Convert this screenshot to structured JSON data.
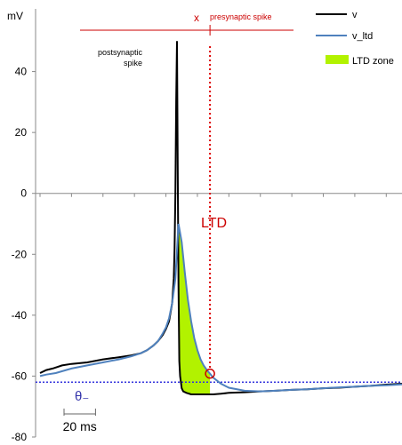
{
  "chart_data": {
    "type": "line",
    "ylabel": "mV",
    "ylim": [
      -80,
      60
    ],
    "yticks": [
      {
        "value": 40,
        "label": "40"
      },
      {
        "value": 20,
        "label": "20"
      },
      {
        "value": 0,
        "label": "0"
      },
      {
        "value": -20,
        "label": "-20"
      },
      {
        "value": -40,
        "label": "-40"
      },
      {
        "value": -60,
        "label": "-60"
      },
      {
        "value": -80,
        "label": "-80"
      }
    ],
    "grid": false,
    "legend": {
      "placement": "top-right",
      "entries": [
        {
          "label": "v",
          "color": "#000000",
          "kind": "line"
        },
        {
          "label": "v_ltd",
          "color": "#4f81bd",
          "kind": "line"
        },
        {
          "label": "LTD zone",
          "color": "#b2f200",
          "kind": "patch"
        }
      ]
    },
    "series": [
      {
        "name": "v",
        "color": "#000000",
        "x": [
          0,
          4,
          8,
          14,
          20,
          30,
          40,
          50,
          58,
          64,
          68,
          72,
          75,
          78,
          80,
          82,
          84,
          85,
          85.5,
          86,
          86.5,
          87,
          87.5,
          88,
          88.5,
          89,
          89.5,
          90,
          91,
          93,
          96,
          100,
          105,
          110,
          115,
          120,
          130,
          140,
          150,
          160,
          170,
          180,
          190,
          200,
          210,
          220,
          230
        ],
        "values": [
          -59,
          -58,
          -57.5,
          -56.5,
          -56,
          -55.5,
          -54.5,
          -53.8,
          -53.2,
          -52.5,
          -51.5,
          -50,
          -48.5,
          -46.5,
          -44.5,
          -42,
          -36,
          -28,
          -18,
          0,
          30,
          50,
          10,
          -30,
          -55,
          -60,
          -62,
          -64,
          -65,
          -65.5,
          -66,
          -66,
          -66,
          -66,
          -65.8,
          -65.5,
          -65.3,
          -65,
          -64.8,
          -64.5,
          -64.3,
          -64,
          -63.8,
          -63.5,
          -63.2,
          -62.8,
          -62.5
        ]
      },
      {
        "name": "v_ltd",
        "color": "#4f81bd",
        "x": [
          0,
          4,
          10,
          20,
          30,
          40,
          50,
          58,
          64,
          68,
          72,
          75,
          78,
          80,
          82,
          84,
          86,
          88,
          90,
          92,
          94,
          96,
          98,
          100,
          102,
          104,
          106,
          108,
          110,
          115,
          120,
          130,
          140,
          150,
          160,
          170,
          180,
          190,
          200,
          210,
          220,
          230
        ],
        "values": [
          -60,
          -59.5,
          -59,
          -57.5,
          -56.5,
          -55.5,
          -54.5,
          -53.5,
          -52.5,
          -51.5,
          -50,
          -48.5,
          -46,
          -44,
          -41,
          -36,
          -28,
          -10,
          -16,
          -26,
          -35,
          -42,
          -47.5,
          -51.5,
          -54.5,
          -56.5,
          -58,
          -59.2,
          -60.5,
          -62.5,
          -63.8,
          -64.8,
          -65,
          -64.8,
          -64.5,
          -64.3,
          -64,
          -63.7,
          -63.5,
          -63.2,
          -63,
          -62.7
        ]
      }
    ],
    "xlim": [
      0,
      230
    ],
    "theta_minus": -62,
    "ltd_zone": {
      "color": "#b2f200",
      "x_start": 88,
      "x_end": 108
    },
    "presynaptic_spike_time": 108,
    "annotations": {
      "presynaptic_marker": "x",
      "presynaptic_label": "presynaptic spike",
      "postsynaptic_label_line1": "postsynaptic",
      "postsynaptic_label_line2": "spike",
      "ltd_label": "LTD",
      "theta_label": "θ₋",
      "scalebar_label": "20 ms",
      "scalebar_ms": 20
    }
  }
}
